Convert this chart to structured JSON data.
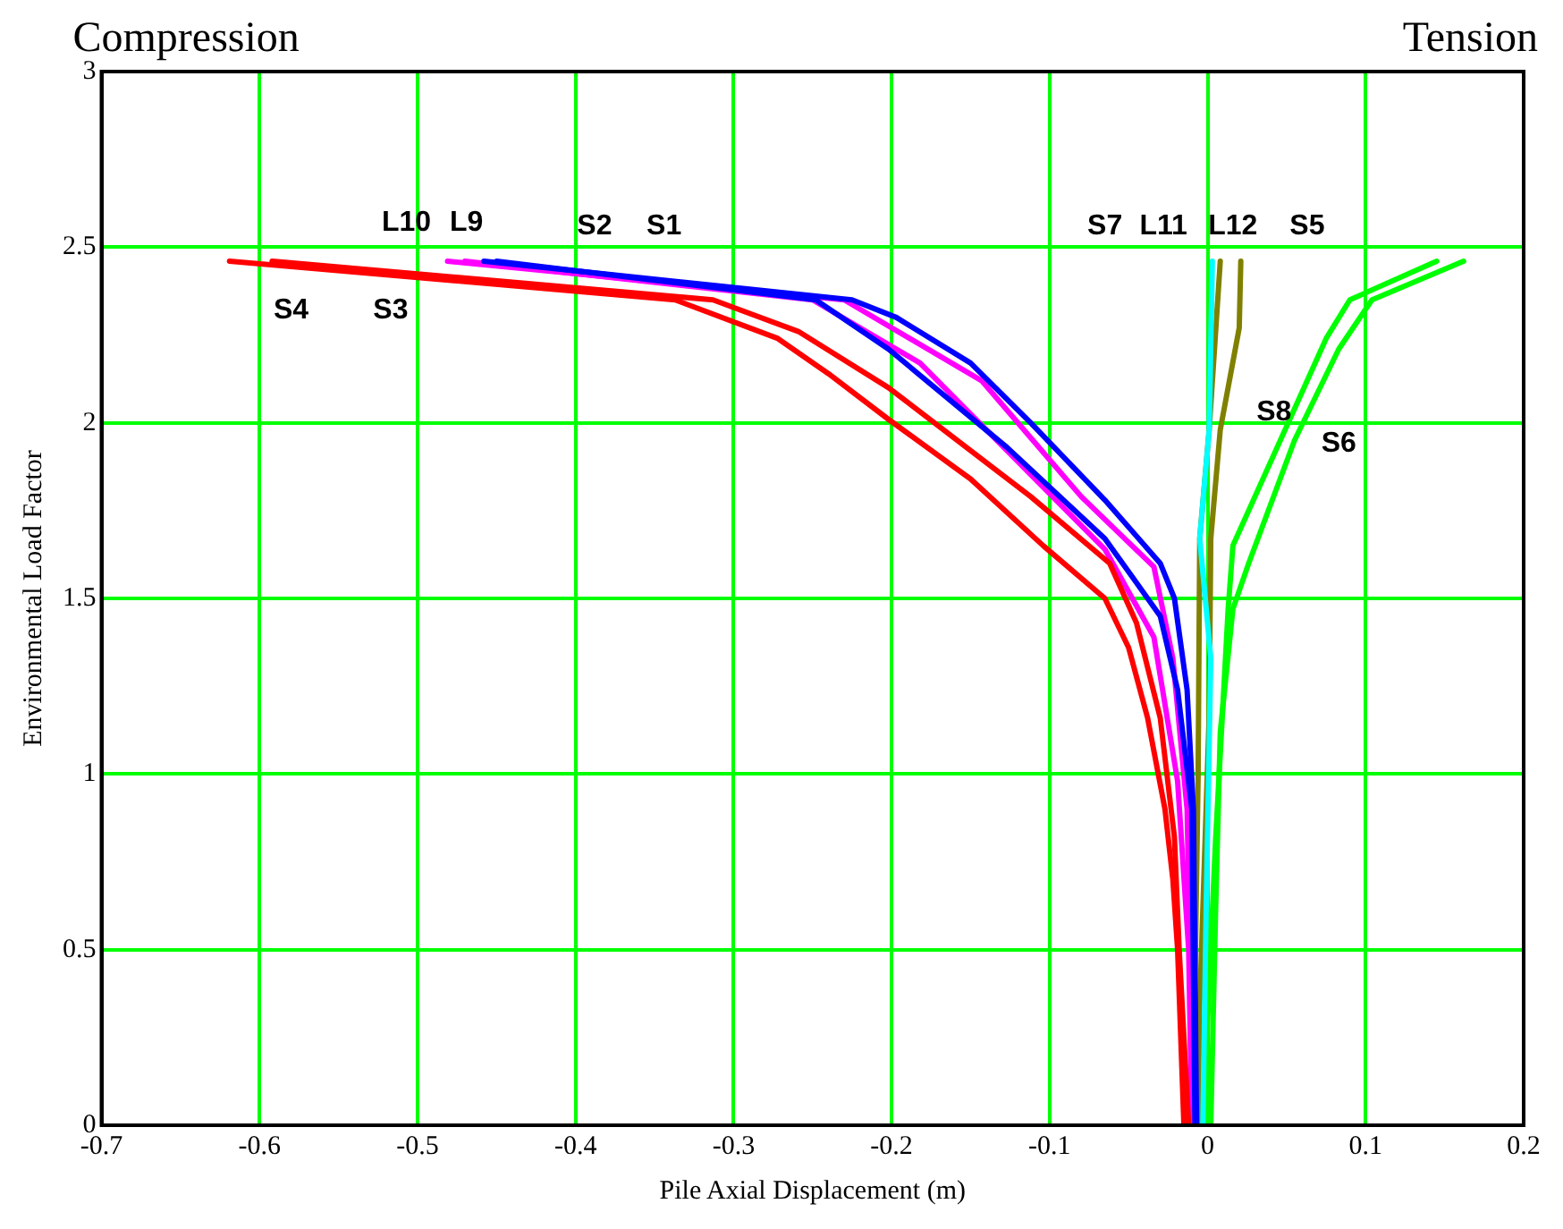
{
  "chart_data": {
    "type": "line",
    "xlabel": "Pile Axial Displacement (m)",
    "ylabel": "Environmental Load Factor",
    "xlim": [
      -0.7,
      0.2
    ],
    "xticks": [
      -0.7,
      -0.6,
      -0.5,
      -0.4,
      -0.3,
      -0.2,
      -0.1,
      0,
      0.1,
      0.2
    ],
    "ylim": [
      0,
      3
    ],
    "yticks": [
      0,
      0.5,
      1,
      1.5,
      2,
      2.5,
      3
    ],
    "grid": true,
    "legend": false,
    "marker": "none",
    "line_style": "solid",
    "annotations": [
      "Compression",
      "Tension",
      "L10",
      "L9",
      "S2",
      "S1",
      "S4",
      "S3",
      "S7",
      "L11",
      "L12",
      "S5",
      "S8",
      "S6"
    ],
    "series": [
      {
        "color": "#ff0000",
        "x": [
          -0.619,
          -0.337,
          -0.272,
          -0.24,
          -0.202,
          -0.15,
          -0.104,
          -0.065,
          -0.05,
          -0.038,
          -0.027,
          -0.022,
          -0.019,
          -0.015
        ],
        "values": [
          2.46,
          2.35,
          2.24,
          2.14,
          2.01,
          1.84,
          1.65,
          1.5,
          1.36,
          1.16,
          0.9,
          0.7,
          0.5,
          0
        ]
      },
      {
        "color": "#ff0000",
        "x": [
          -0.592,
          -0.313,
          -0.259,
          -0.202,
          -0.112,
          -0.062,
          -0.045,
          -0.03,
          -0.021,
          -0.018,
          -0.012
        ],
        "values": [
          2.46,
          2.35,
          2.26,
          2.1,
          1.79,
          1.6,
          1.43,
          1.16,
          0.82,
          0.5,
          0
        ]
      },
      {
        "color": "#0000ff",
        "x": [
          -0.458,
          -0.225,
          -0.197,
          -0.15,
          -0.112,
          -0.065,
          -0.03,
          -0.021,
          -0.013,
          -0.009,
          -0.007
        ],
        "values": [
          2.46,
          2.35,
          2.3,
          2.17,
          2.0,
          1.78,
          1.6,
          1.5,
          1.24,
          0.9,
          0
        ]
      },
      {
        "color": "#0000ff",
        "x": [
          -0.45,
          -0.248,
          -0.202,
          -0.127,
          -0.065,
          -0.03,
          -0.019,
          -0.01,
          -0.008
        ],
        "values": [
          2.46,
          2.35,
          2.21,
          1.93,
          1.67,
          1.45,
          1.24,
          0.9,
          0
        ]
      },
      {
        "color": "#ff00ff",
        "x": [
          -0.481,
          -0.23,
          -0.143,
          -0.08,
          -0.034,
          -0.022,
          -0.013,
          -0.009
        ],
        "values": [
          2.46,
          2.35,
          2.12,
          1.79,
          1.59,
          1.33,
          0.9,
          0
        ]
      },
      {
        "color": "#ff00ff",
        "x": [
          -0.47,
          -0.25,
          -0.182,
          -0.065,
          -0.034,
          -0.019,
          -0.012,
          -0.01
        ],
        "values": [
          2.46,
          2.35,
          2.17,
          1.64,
          1.39,
          0.98,
          0.5,
          0
        ]
      },
      {
        "color": "#00ffff",
        "x": [
          0.003,
          0.001,
          -0.005,
          0.002,
          -0.001,
          -0.003
        ],
        "values": [
          2.46,
          1.98,
          1.67,
          1.33,
          0.6,
          0
        ]
      },
      {
        "color": "#808000",
        "x": [
          0.008,
          0.001,
          -0.005,
          -0.006,
          -0.008,
          -0.009
        ],
        "values": [
          2.46,
          1.98,
          1.67,
          1.0,
          0.4,
          0
        ]
      },
      {
        "color": "#808000",
        "x": [
          0.021,
          0.02,
          0.008,
          0.002,
          0.001,
          -0.005,
          -0.006
        ],
        "values": [
          2.46,
          2.27,
          1.98,
          1.67,
          1.17,
          0.34,
          0
        ]
      },
      {
        "color": "#00ff00",
        "x": [
          0.145,
          0.09,
          0.075,
          0.051,
          0.016,
          0.013,
          0.005,
          0.0,
          -0.002
        ],
        "values": [
          2.46,
          2.35,
          2.24,
          2.0,
          1.65,
          1.47,
          0.81,
          0.3,
          0
        ]
      },
      {
        "color": "#00ff00",
        "x": [
          0.162,
          0.104,
          0.083,
          0.055,
          0.026,
          0.016,
          0.008,
          0.005,
          0.002
        ],
        "values": [
          2.46,
          2.35,
          2.21,
          1.95,
          1.6,
          1.47,
          1.12,
          0.6,
          0
        ]
      }
    ]
  }
}
